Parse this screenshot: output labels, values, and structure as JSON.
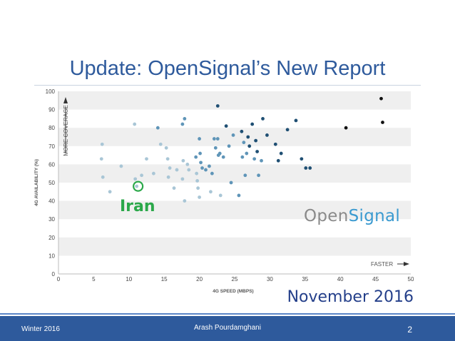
{
  "slide": {
    "title": "Update: OpenSignal’s New Report",
    "annotation": "Iran",
    "brand_left": "Open",
    "brand_right": "Signal",
    "date": "November 2016"
  },
  "footer": {
    "left": "Winter 2016",
    "center": "Arash Pourdamghani",
    "page": "2"
  },
  "colors": {
    "title": "#2e5a9c",
    "footer_bg": "#2e5a9c",
    "iran": "#2ba84a",
    "point_light": "#a9c6d6",
    "point_mid": "#5f95b8",
    "point_dark": "#1f4f73",
    "point_darkest": "#111111"
  },
  "chart_data": {
    "type": "scatter",
    "xlabel": "4G SPEED (MBPS)",
    "ylabel": "4G AVAILABILITY (%)",
    "x_axis_note": "FASTER",
    "y_axis_note": "MORE COVERAGE",
    "xlim": [
      0,
      50
    ],
    "ylim": [
      0,
      100
    ],
    "xticks": [
      0,
      5,
      10,
      15,
      20,
      25,
      30,
      35,
      40,
      45,
      50
    ],
    "yticks": [
      0,
      10,
      20,
      30,
      40,
      50,
      60,
      70,
      80,
      90,
      100
    ],
    "grid": "horizontal bands",
    "highlight": {
      "label": "Iran",
      "x": 11.3,
      "y": 48
    },
    "points": [
      [
        6.2,
        71
      ],
      [
        6.1,
        63
      ],
      [
        6.3,
        53
      ],
      [
        7.3,
        45
      ],
      [
        8.9,
        59
      ],
      [
        10.8,
        82
      ],
      [
        10.9,
        52
      ],
      [
        11.1,
        48
      ],
      [
        11.8,
        54
      ],
      [
        12.5,
        63
      ],
      [
        13.5,
        55
      ],
      [
        14.1,
        80
      ],
      [
        14.5,
        71
      ],
      [
        15.3,
        69
      ],
      [
        15.5,
        63
      ],
      [
        15.8,
        58
      ],
      [
        15.6,
        53
      ],
      [
        16.4,
        47
      ],
      [
        16.8,
        57
      ],
      [
        17.7,
        62
      ],
      [
        17.6,
        52
      ],
      [
        17.6,
        82
      ],
      [
        17.9,
        85
      ],
      [
        17.9,
        40
      ],
      [
        18.3,
        60
      ],
      [
        18.5,
        57
      ],
      [
        19.5,
        64
      ],
      [
        19.6,
        55
      ],
      [
        19.7,
        51
      ],
      [
        19.8,
        47
      ],
      [
        20.0,
        42
      ],
      [
        20.1,
        66
      ],
      [
        20.0,
        74
      ],
      [
        20.2,
        61
      ],
      [
        20.4,
        58
      ],
      [
        20.9,
        57
      ],
      [
        21.4,
        59
      ],
      [
        21.6,
        45
      ],
      [
        21.8,
        55
      ],
      [
        22.1,
        74
      ],
      [
        22.3,
        69
      ],
      [
        22.6,
        74
      ],
      [
        22.7,
        65
      ],
      [
        22.9,
        66
      ],
      [
        23.0,
        43
      ],
      [
        22.6,
        92
      ],
      [
        23.4,
        64
      ],
      [
        23.8,
        81
      ],
      [
        24.2,
        70
      ],
      [
        24.8,
        76
      ],
      [
        24.5,
        50
      ],
      [
        25.6,
        43
      ],
      [
        26.0,
        78
      ],
      [
        26.1,
        64
      ],
      [
        26.3,
        72
      ],
      [
        26.5,
        54
      ],
      [
        26.7,
        66
      ],
      [
        26.9,
        75
      ],
      [
        27.1,
        70
      ],
      [
        27.5,
        82
      ],
      [
        27.8,
        63
      ],
      [
        28.0,
        73
      ],
      [
        28.2,
        67
      ],
      [
        28.4,
        54
      ],
      [
        28.8,
        62
      ],
      [
        29.0,
        85
      ],
      [
        29.6,
        76
      ],
      [
        30.8,
        71
      ],
      [
        31.2,
        62
      ],
      [
        31.6,
        66
      ],
      [
        32.5,
        79
      ],
      [
        33.7,
        84
      ],
      [
        34.5,
        63
      ],
      [
        35.1,
        58
      ],
      [
        35.7,
        58
      ],
      [
        40.8,
        80
      ],
      [
        45.8,
        96
      ],
      [
        46.0,
        83
      ]
    ]
  }
}
